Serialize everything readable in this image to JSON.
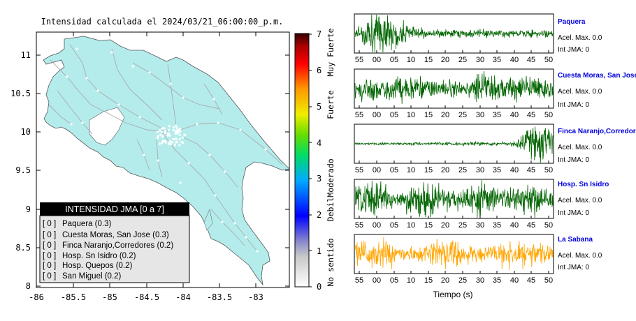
{
  "map": {
    "title": "Intensidad calculada el 2024/03/21_06:00:00_p.m.",
    "x_ticks": [
      "-86",
      "-85.5",
      "-85",
      "-84.5",
      "-84",
      "-83.5",
      "-83"
    ],
    "y_ticks": [
      "11",
      "10.5",
      "10",
      "9.5",
      "9",
      "8.5",
      "8"
    ],
    "land_color": "#b4ecec",
    "road_color": "#aaaaaa"
  },
  "legend": {
    "title": "INTENSIDAD JMA [0 a 7]",
    "items": [
      {
        "level": "[ 0 ]",
        "label": "Paquera (0.3)"
      },
      {
        "level": "[ 0 ]",
        "label": "Cuesta Moras, San Jose (0.3)"
      },
      {
        "level": "[ 0 ]",
        "label": "Finca Naranjo,Corredores (0.2)"
      },
      {
        "level": "[ 0 ]",
        "label": "Hosp. Sn Isidro (0.2)"
      },
      {
        "level": "[ 0 ]",
        "label": "Hosp. Quepos (0.2)"
      },
      {
        "level": "[ 0 ]",
        "label": "San Miguel (0.2)"
      }
    ]
  },
  "colorbar": {
    "ticks": [
      "0",
      "1",
      "2",
      "3",
      "4",
      "5",
      "6",
      "7"
    ],
    "labels": [
      "No sentido",
      "Debil",
      "Moderado",
      "Fuerte",
      "Muy Fuerte"
    ]
  },
  "traces": [
    {
      "station": "Paquera",
      "acel": "Acel. Max. 0.0",
      "int": "Int JMA: 0",
      "color": "#006400"
    },
    {
      "station": "Cuesta Moras, San Jose",
      "acel": "Acel. Max. 0.0",
      "int": "Int JMA: 0",
      "color": "#006400"
    },
    {
      "station": "Finca Naranjo,Corredores",
      "acel": "Acel. Max. 0.0",
      "int": "Int JMA: 0",
      "color": "#006400"
    },
    {
      "station": "Hosp. Sn Isidro",
      "acel": "Acel. Max. 0.0",
      "int": "Int JMA: 0",
      "color": "#006400"
    },
    {
      "station": "La Sabana",
      "acel": "Acel. Max. 0.0",
      "int": "Int JMA: 0",
      "color": "#ffa500"
    }
  ],
  "trace_ticks": [
    [
      "55",
      "00",
      "05",
      "10",
      "15",
      "20",
      "25",
      "30",
      "35",
      "40",
      "45",
      "50"
    ],
    [
      "55",
      "00",
      "05",
      "10",
      "15",
      "20",
      "25",
      "30",
      "35",
      "40",
      "45",
      "50"
    ],
    [
      "55",
      "00",
      "05",
      "10",
      "15",
      "20",
      "25",
      "30",
      "35",
      "40",
      "45",
      "50"
    ],
    [
      "55",
      "00",
      "05",
      "10",
      "15",
      "20",
      "25",
      "30",
      "35",
      "40",
      "45",
      "50"
    ],
    [
      "55",
      "00",
      "05",
      "10",
      "15",
      "20",
      "25",
      "30",
      "35",
      "40",
      "45",
      "50"
    ]
  ],
  "time_label": "Tiempo (s)",
  "chart_data": [
    {
      "type": "heatmap",
      "title": "Intensidad calculada el 2024/03/21_06:00:00_p.m.",
      "xlim": [
        -86,
        -82.55
      ],
      "ylim": [
        8,
        11.35
      ],
      "x_ticks": [
        -86,
        -85.5,
        -85,
        -84.5,
        -84,
        -83.5,
        -83
      ],
      "y_ticks": [
        11,
        10.5,
        10,
        9.5,
        9,
        8.5,
        8
      ],
      "colorbar_range": [
        0,
        7
      ],
      "legend_title": "INTENSIDAD JMA [0 a 7]",
      "stations": [
        {
          "name": "Paquera",
          "intensity": 0.3
        },
        {
          "name": "Cuesta Moras, San Jose",
          "intensity": 0.3
        },
        {
          "name": "Finca Naranjo,Corredores",
          "intensity": 0.2
        },
        {
          "name": "Hosp. Sn Isidro",
          "intensity": 0.2
        },
        {
          "name": "Hosp. Quepos",
          "intensity": 0.2
        },
        {
          "name": "San Miguel",
          "intensity": 0.2
        }
      ]
    },
    {
      "type": "line",
      "xlabel": "Tiempo (s)",
      "x_ticks": [
        "55",
        "00",
        "05",
        "10",
        "15",
        "20",
        "25",
        "30",
        "35",
        "40",
        "45",
        "50"
      ],
      "series": [
        {
          "name": "Paquera",
          "acel_max": 0.0,
          "int_jma": 0
        },
        {
          "name": "Cuesta Moras, San Jose",
          "acel_max": 0.0,
          "int_jma": 0
        },
        {
          "name": "Finca Naranjo,Corredores",
          "acel_max": 0.0,
          "int_jma": 0
        },
        {
          "name": "Hosp. Sn Isidro",
          "acel_max": 0.0,
          "int_jma": 0
        },
        {
          "name": "La Sabana",
          "acel_max": 0.0,
          "int_jma": 0
        }
      ]
    }
  ]
}
